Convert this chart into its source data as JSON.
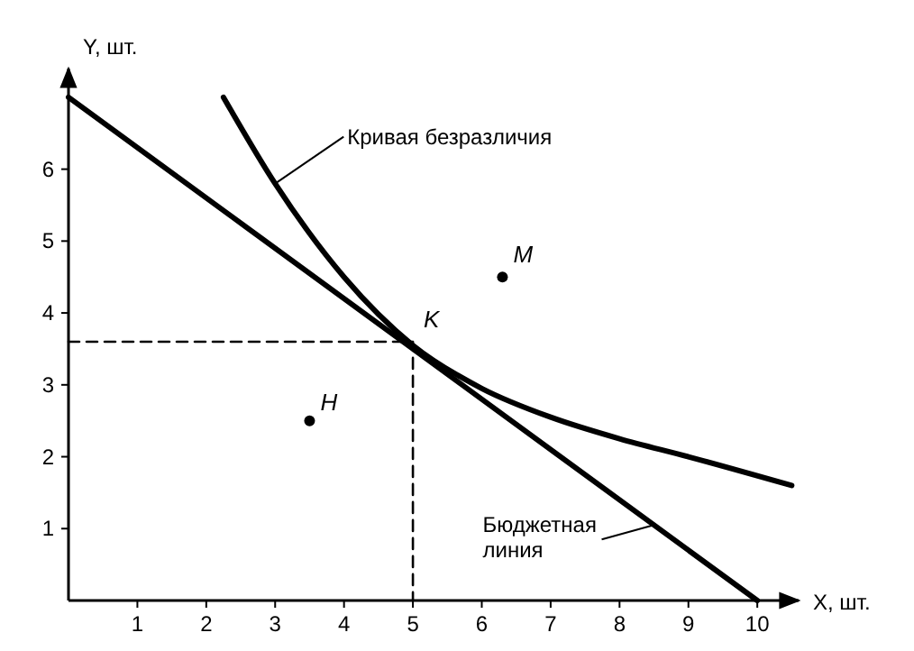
{
  "chart_data": {
    "type": "line",
    "xlabel": "X, шт.",
    "ylabel": "Y, шт.",
    "xlim": [
      0,
      10.6
    ],
    "ylim": [
      0,
      7.4
    ],
    "xticks": [
      1,
      2,
      3,
      4,
      5,
      6,
      7,
      8,
      9,
      10
    ],
    "yticks": [
      1,
      2,
      3,
      4,
      5,
      6
    ],
    "grid": false,
    "series": [
      {
        "color": "#000000",
        "x": [
          2.25,
          3,
          4,
          5,
          6,
          7,
          8,
          9,
          10.5
        ],
        "values": [
          7,
          5.8,
          4.5,
          3.55,
          2.95,
          2.55,
          2.25,
          2,
          1.6
        ]
      },
      {
        "color": "#000000",
        "x": [
          0,
          10
        ],
        "values": [
          7,
          0
        ]
      },
      {
        "type": "line",
        "color": "#000000",
        "line_style": "dashed",
        "x": [
          0,
          5,
          5
        ],
        "values": [
          3.6,
          3.6,
          0
        ]
      },
      {
        "type": "scatter",
        "color": "#000000",
        "marker": "circle",
        "x": [
          3.5,
          6.3
        ],
        "values": [
          2.5,
          4.5
        ]
      }
    ],
    "annotations": [
      {
        "text": "Кривая безразличия",
        "x": 3,
        "y": 5.8
      },
      {
        "text": "Бюджетная линия",
        "x": 8.5,
        "y": 1.05
      },
      {
        "text": "K",
        "x": 5,
        "y": 3.6
      },
      {
        "text": "H",
        "x": 3.5,
        "y": 2.5
      },
      {
        "text": "M",
        "x": 6.3,
        "y": 4.5
      }
    ]
  }
}
